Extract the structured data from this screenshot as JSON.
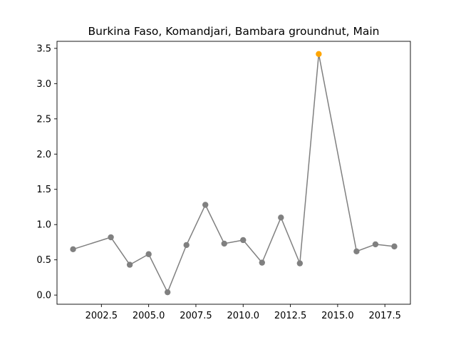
{
  "chart_data": {
    "type": "line",
    "title": "Burkina Faso, Komandjari, Bambara groundnut, Main",
    "xlabel": "",
    "ylabel": "",
    "xlim": [
      2000.15,
      2018.85
    ],
    "ylim": [
      -0.13,
      3.6
    ],
    "xticks": [
      2002.5,
      2005.0,
      2007.5,
      2010.0,
      2012.5,
      2015.0,
      2017.5
    ],
    "xtick_labels": [
      "2002.5",
      "2005.0",
      "2007.5",
      "2010.0",
      "2012.5",
      "2015.0",
      "2017.5"
    ],
    "yticks": [
      0.0,
      0.5,
      1.0,
      1.5,
      2.0,
      2.5,
      3.0,
      3.5
    ],
    "ytick_labels": [
      "0.0",
      "0.5",
      "1.0",
      "1.5",
      "2.0",
      "2.5",
      "3.0",
      "3.5"
    ],
    "grid": false,
    "series": [
      {
        "x": [
          2001,
          2003,
          2004,
          2005,
          2006,
          2007,
          2008,
          2009,
          2010,
          2011,
          2012,
          2013,
          2014,
          2016,
          2017,
          2018
        ],
        "values": [
          0.65,
          0.82,
          0.43,
          0.58,
          0.04,
          0.71,
          1.28,
          0.73,
          0.78,
          0.46,
          1.1,
          0.45,
          3.42,
          0.62,
          0.72,
          0.69
        ],
        "color": "#808080"
      }
    ],
    "highlight": {
      "x": 2014,
      "value": 3.42,
      "color": "#ffa500"
    }
  }
}
